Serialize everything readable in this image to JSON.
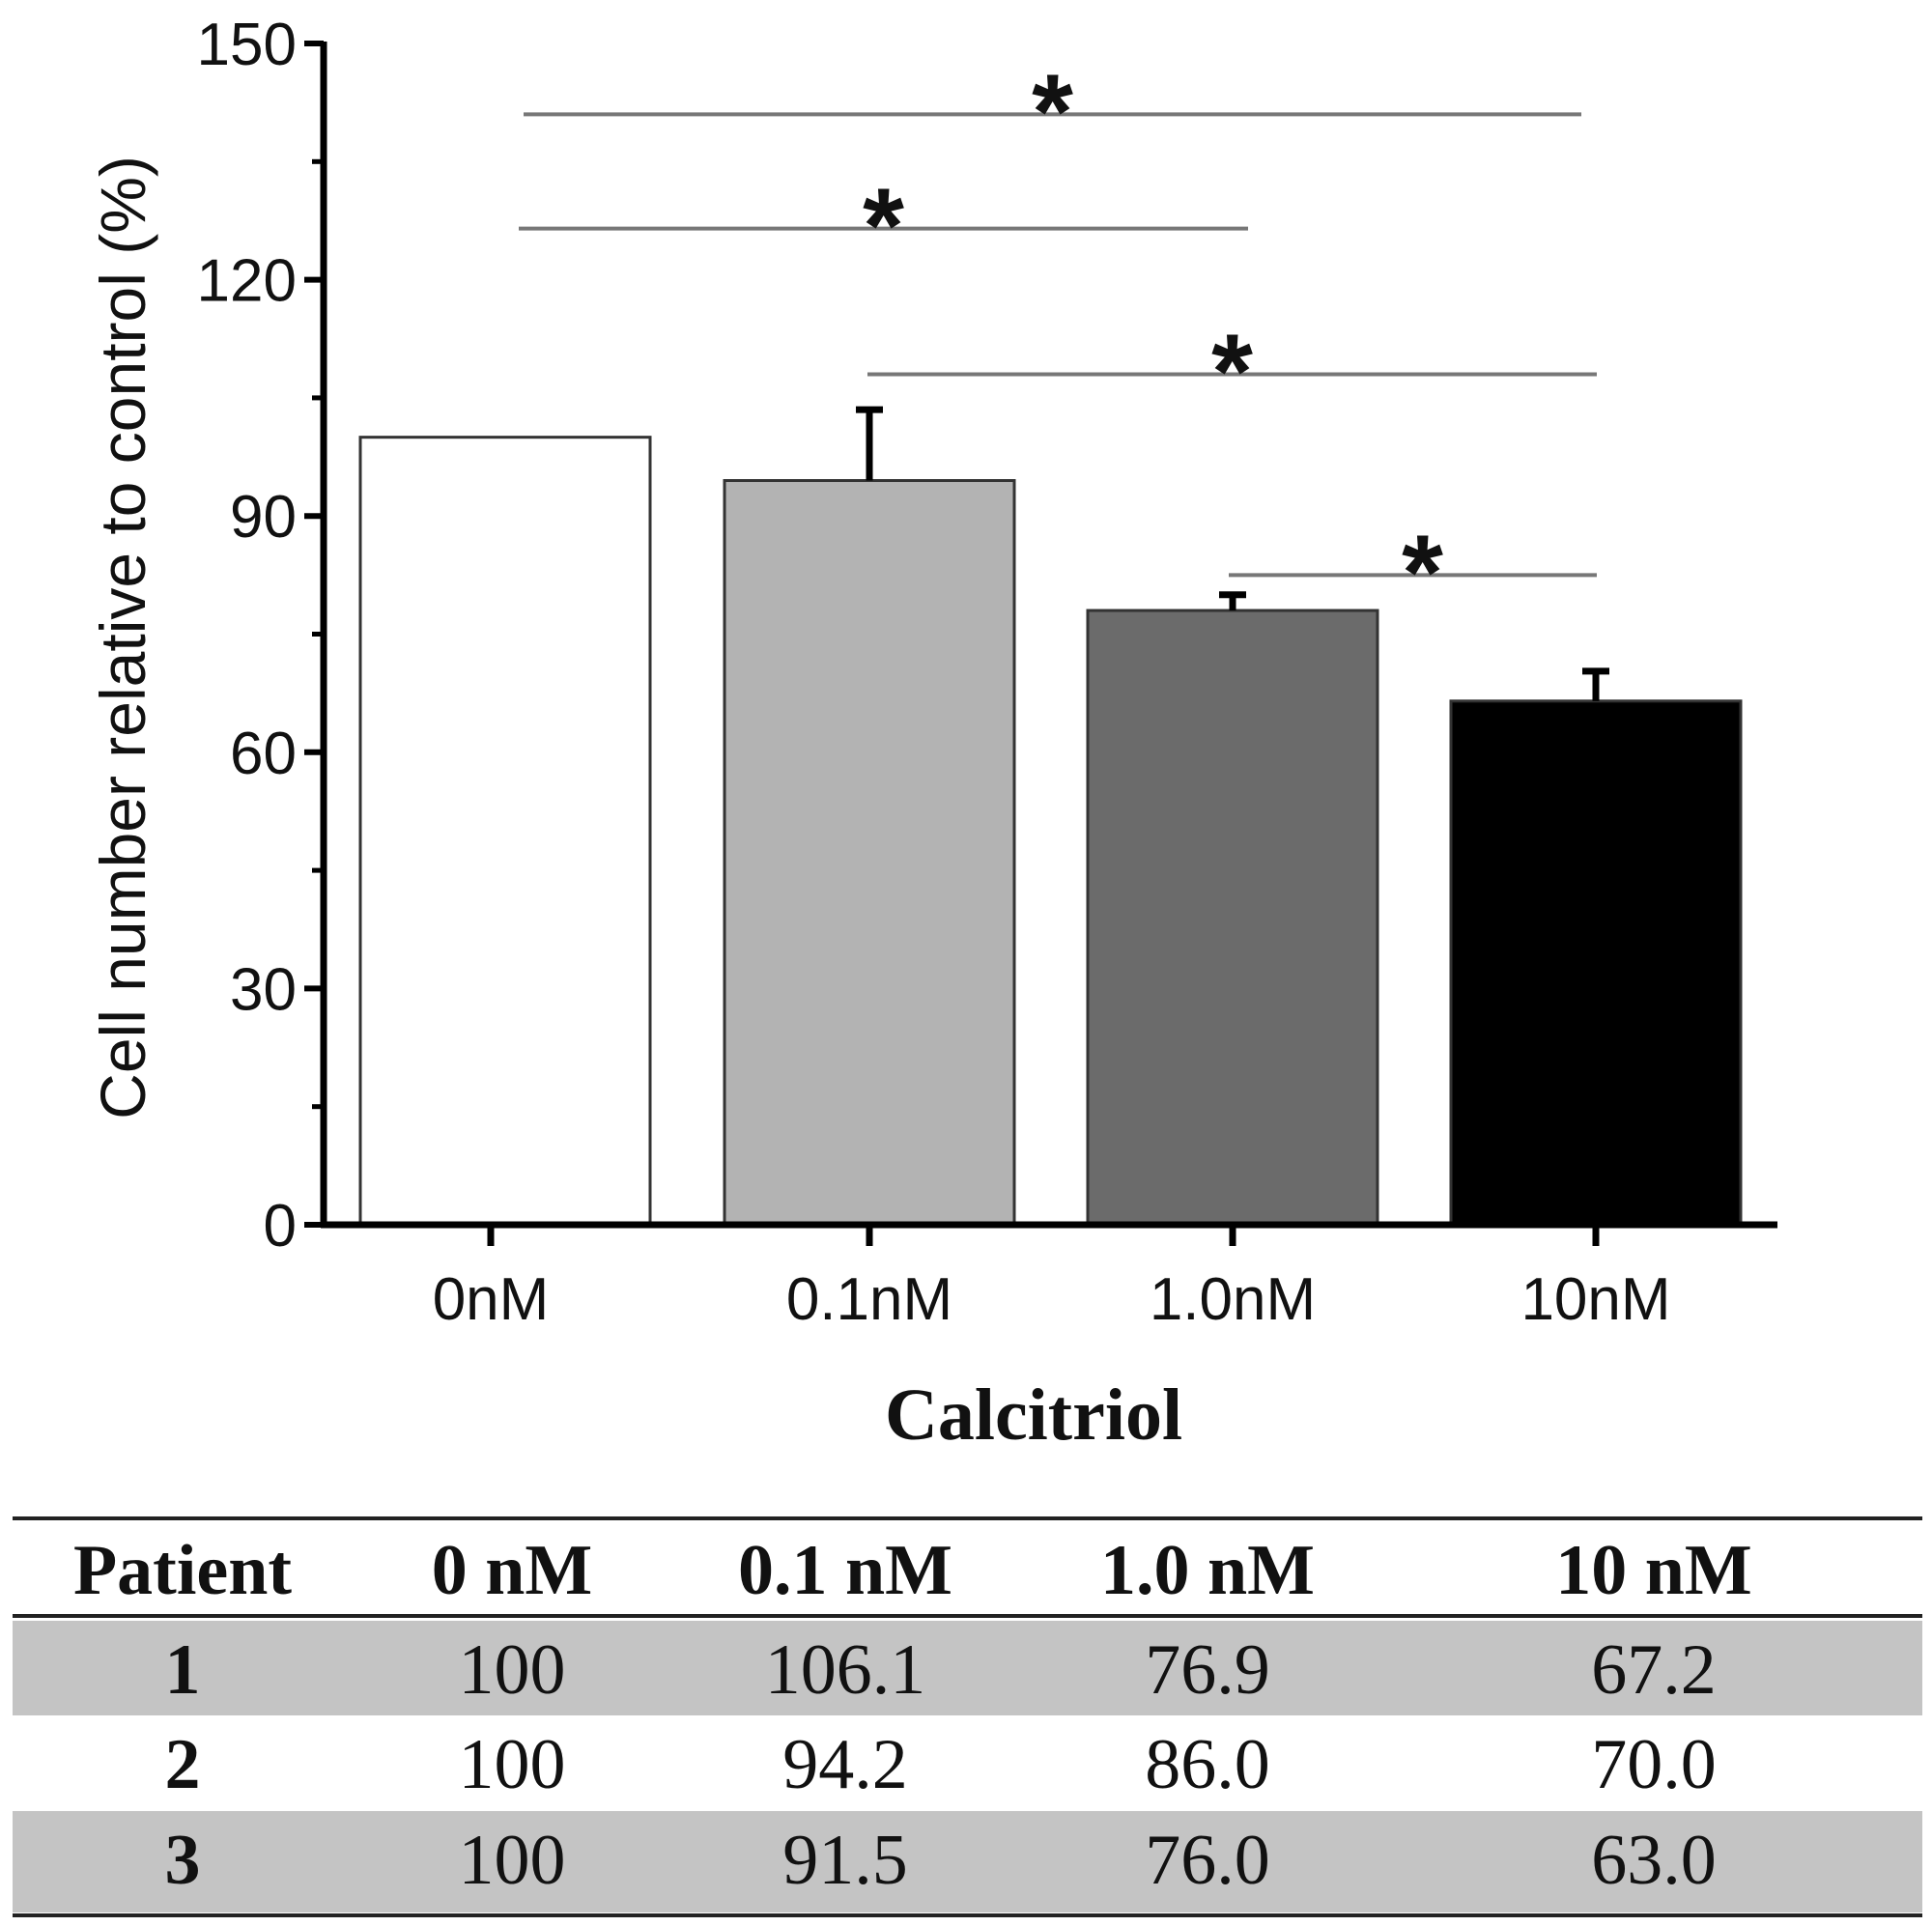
{
  "chart_data": {
    "type": "bar",
    "title": "",
    "xlabel": "Calcitriol",
    "ylabel": "Cell number relative to control (%)",
    "ylim": [
      0,
      150
    ],
    "yticks": [
      "0",
      "30",
      "60",
      "90",
      "120",
      "150"
    ],
    "categories": [
      "0nM",
      "0.1nM",
      "1.0nM",
      "10nM"
    ],
    "values": [
      100,
      94.5,
      78,
      66.5
    ],
    "error_upper": [
      100,
      103.5,
      80,
      70.3
    ],
    "bar_colors": [
      "#ffffff",
      "#b3b3b3",
      "#6b6b6b",
      "#000000"
    ],
    "significance": [
      {
        "from": "0nM",
        "to": "10nM",
        "level": 141,
        "label": "*"
      },
      {
        "from": "0nM",
        "to": "1.0nM",
        "level": 126.5,
        "label": "*"
      },
      {
        "from": "0.1nM",
        "to": "10nM",
        "level": 108,
        "label": "*"
      },
      {
        "from": "1.0nM",
        "to": "10nM",
        "level": 82.5,
        "label": "*"
      }
    ],
    "grid": false,
    "legend": "none"
  },
  "table": {
    "headers": [
      "Patient",
      "0 nM",
      "0.1 nM",
      "1.0 nM",
      "10 nM"
    ],
    "rows": [
      [
        "1",
        "100",
        "106.1",
        "76.9",
        "67.2"
      ],
      [
        "2",
        "100",
        "94.2",
        "86.0",
        "70.0"
      ],
      [
        "3",
        "100",
        "91.5",
        "76.0",
        "63.0"
      ]
    ]
  }
}
